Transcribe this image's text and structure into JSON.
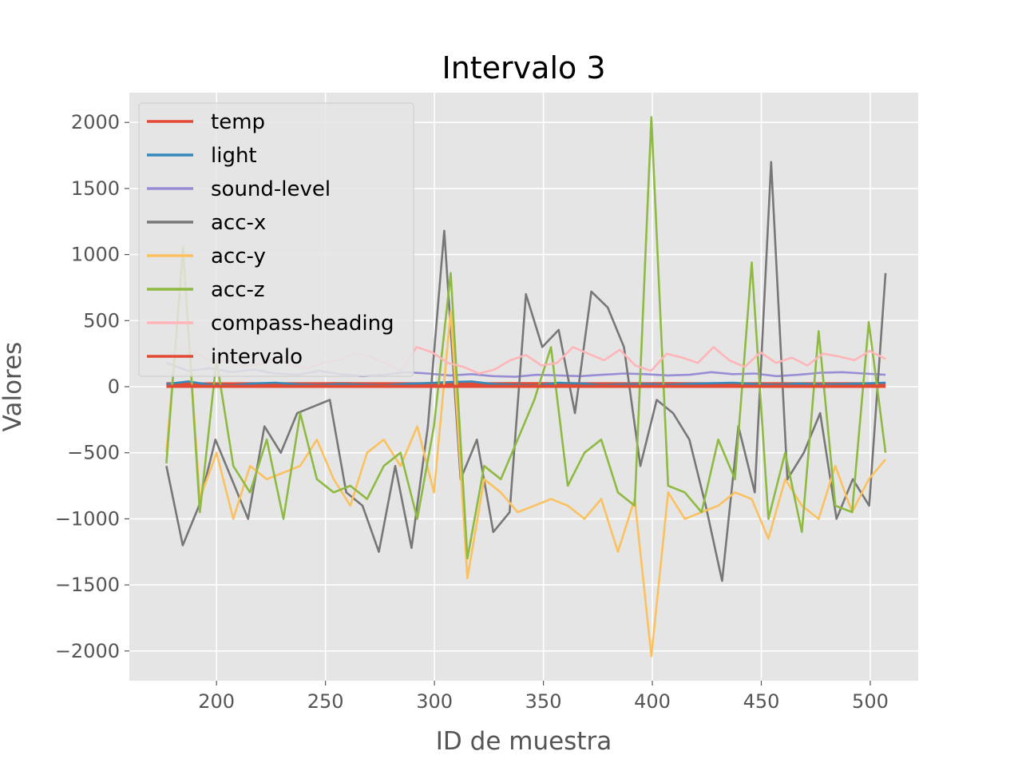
{
  "chart_data": {
    "type": "line",
    "title": "Intervalo 3",
    "xlabel": "ID de muestra",
    "ylabel": "Valores",
    "xlim": [
      160,
      522
    ],
    "ylim": [
      -2225,
      2225
    ],
    "x_ticks": [
      200,
      250,
      300,
      350,
      400,
      450,
      500
    ],
    "x_tick_labels": [
      "200",
      "250",
      "300",
      "350",
      "400",
      "450",
      "500"
    ],
    "y_ticks": [
      -2000,
      -1500,
      -1000,
      -500,
      0,
      500,
      1000,
      1500,
      2000
    ],
    "y_tick_labels": [
      "−2000",
      "−1500",
      "−1000",
      "−500",
      "0",
      "500",
      "1000",
      "1500",
      "2000"
    ],
    "grid": true,
    "background": "#e5e5e5",
    "legend_position": "upper-left",
    "x_start": 177,
    "x_step": 10,
    "series": [
      {
        "name": "temp",
        "color": "#e24a33",
        "values": [
          22,
          22,
          21,
          21,
          22,
          22,
          22,
          22,
          23,
          22,
          22,
          22,
          22,
          23,
          22,
          22,
          23,
          23,
          22,
          22,
          22,
          22,
          22,
          23,
          22,
          22,
          22,
          22,
          22,
          22,
          22,
          22,
          22,
          22
        ]
      },
      {
        "name": "light",
        "color": "#348abd",
        "values": [
          20,
          40,
          15,
          10,
          25,
          30,
          18,
          12,
          20,
          15,
          10,
          22,
          28,
          35,
          40,
          20,
          15,
          10,
          30,
          25,
          12,
          18,
          20,
          15,
          22,
          26,
          30,
          20,
          15,
          24,
          18,
          20,
          25,
          30
        ]
      },
      {
        "name": "sound-level",
        "color": "#988ed5",
        "values": [
          180,
          120,
          140,
          110,
          130,
          100,
          90,
          120,
          95,
          80,
          90,
          110,
          100,
          85,
          95,
          80,
          75,
          90,
          85,
          80,
          90,
          100,
          95,
          85,
          90,
          110,
          95,
          100,
          80,
          90,
          105,
          110,
          100,
          90
        ]
      },
      {
        "name": "acc-x",
        "color": "#777777",
        "values": [
          -600,
          -1200,
          -900,
          -400,
          -700,
          -1000,
          -300,
          -500,
          -200,
          -150,
          -100,
          -800,
          -900,
          -1250,
          -600,
          -1220,
          -300,
          1180,
          -700,
          -400,
          -1100,
          -950,
          700,
          300,
          430,
          -200,
          720,
          600,
          300,
          -600,
          -100,
          -200,
          -400,
          -900,
          -1470,
          -300,
          -800,
          1700,
          -700,
          -500,
          -200,
          -1000,
          -700,
          -900,
          860
        ]
      },
      {
        "name": "acc-y",
        "color": "#fbc15e",
        "values": [
          -500,
          1000,
          -850,
          -500,
          -1000,
          -600,
          -700,
          -650,
          -600,
          -400,
          -700,
          -900,
          -500,
          -400,
          -600,
          -300,
          -800,
          570,
          -1450,
          -700,
          -800,
          -950,
          -900,
          -850,
          -900,
          -1000,
          -850,
          -1250,
          -850,
          -2040,
          -800,
          -1000,
          -950,
          -900,
          -800,
          -850,
          -1150,
          -700,
          -900,
          -1000,
          -600,
          -950,
          -700,
          -550
        ]
      },
      {
        "name": "acc-z",
        "color": "#8eba42",
        "values": [
          -580,
          1060,
          -950,
          200,
          -600,
          -800,
          -400,
          -1000,
          -200,
          -700,
          -800,
          -750,
          -850,
          -600,
          -500,
          -1000,
          -300,
          860,
          -1300,
          -600,
          -700,
          -400,
          -100,
          300,
          -750,
          -500,
          -400,
          -800,
          -900,
          2040,
          -750,
          -800,
          -950,
          -400,
          -700,
          940,
          -1000,
          -500,
          -1100,
          420,
          -900,
          -950,
          490,
          -500
        ]
      },
      {
        "name": "compass-heading",
        "color": "#ffb5b8",
        "values": [
          220,
          300,
          250,
          180,
          200,
          150,
          170,
          220,
          160,
          140,
          180,
          200,
          250,
          230,
          180,
          120,
          300,
          260,
          180,
          150,
          100,
          130,
          200,
          240,
          160,
          180,
          300,
          250,
          200,
          280,
          160,
          120,
          250,
          220,
          180,
          300,
          200,
          150,
          260,
          180,
          220,
          160,
          250,
          230,
          200,
          270,
          210
        ]
      },
      {
        "name": "intervalo",
        "color": "#e24a33",
        "values": [
          3,
          3,
          3,
          3,
          3,
          3,
          3,
          3,
          3,
          3,
          3,
          3,
          3,
          3,
          3,
          3,
          3,
          3,
          3,
          3,
          3,
          3,
          3,
          3,
          3,
          3,
          3,
          3,
          3,
          3,
          3,
          3,
          3,
          3
        ]
      }
    ]
  }
}
